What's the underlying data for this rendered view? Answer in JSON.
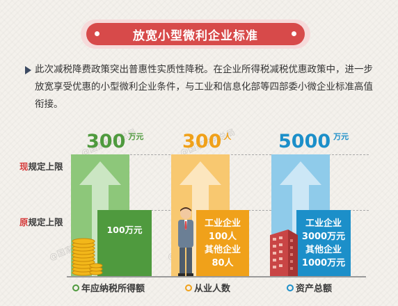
{
  "title": "放宽小型微利企业标准",
  "intro": "此次减税降费政策突出普惠性实质性降税。在企业所得税减税优惠政策中，进一步放宽享受优惠的小型微利企业条件，与工业和信息化部等四部委小微企业标准高值衔接。",
  "watermark": "@国家税务总局",
  "rows": {
    "new_first": "现",
    "new_rest": "规定上限",
    "old_first": "原",
    "old_rest": "规定上限"
  },
  "columns": [
    {
      "new_value": "300",
      "new_unit": "万元",
      "old_lines": [
        "100万元"
      ],
      "legend": "年应纳税所得额",
      "icon": "coins-icon"
    },
    {
      "new_value": "300",
      "new_unit": "人",
      "old_lines": [
        "工业企业",
        "100人",
        "其他企业",
        "80人"
      ],
      "legend": "从业人数",
      "icon": "businessman-icon"
    },
    {
      "new_value": "5000",
      "new_unit": "万元",
      "old_lines": [
        "工业企业",
        "3000万元",
        "其他企业",
        "1000万元"
      ],
      "legend": "资产总额",
      "icon": "building-icon"
    }
  ],
  "colors": {
    "banner": "#d74a4a",
    "green_dark": "#4f9a3e",
    "green_light": "#8dc77a",
    "orange_dark": "#f0a11a",
    "orange_light": "#f8c870",
    "blue_dark": "#1c8fc9",
    "blue_light": "#8fcbea"
  }
}
